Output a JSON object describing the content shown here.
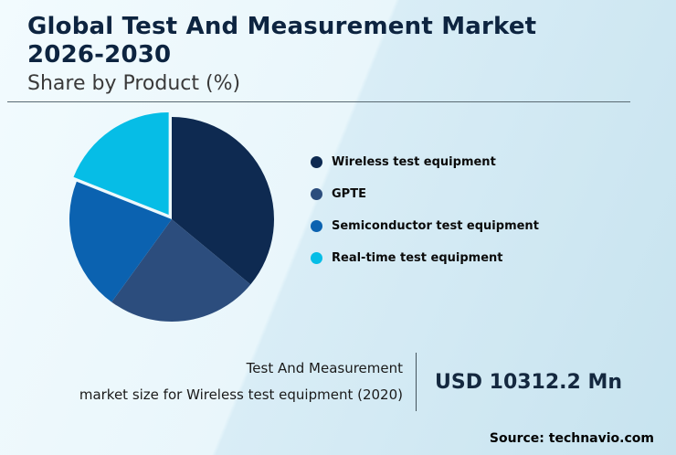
{
  "header": {
    "title_line1": "Global Test And Measurement Market",
    "title_line2": "2026-2030",
    "subtitle": "Share by Product (%)"
  },
  "chart_data": {
    "type": "pie",
    "title": "Global Test And Measurement Market 2026-2030 — Share by Product (%)",
    "labels": [
      "Wireless test equipment",
      "GPTE",
      "Semiconductor test equipment",
      "Real-time test equipment"
    ],
    "values": [
      36,
      24,
      21,
      19
    ],
    "unit": "%",
    "colors": [
      "#0e2a51",
      "#2c4d7d",
      "#0b62b0",
      "#06bde6"
    ],
    "legend_position": "right",
    "start_angle_deg": -90,
    "direction": "clockwise",
    "exploded_slice": "Real-time test equipment"
  },
  "legend": {
    "items": [
      {
        "label": "Wireless test equipment",
        "color": "#0e2a51"
      },
      {
        "label": "GPTE",
        "color": "#2c4d7d"
      },
      {
        "label": "Semiconductor test equipment",
        "color": "#0b62b0"
      },
      {
        "label": "Real-time test equipment",
        "color": "#06bde6"
      }
    ]
  },
  "callout": {
    "description_line1": "Test And Measurement",
    "description_line2": "market size for Wireless test equipment (2020)",
    "value": "USD 10312.2 Mn"
  },
  "footer": {
    "source": "Source: technavio.com"
  }
}
